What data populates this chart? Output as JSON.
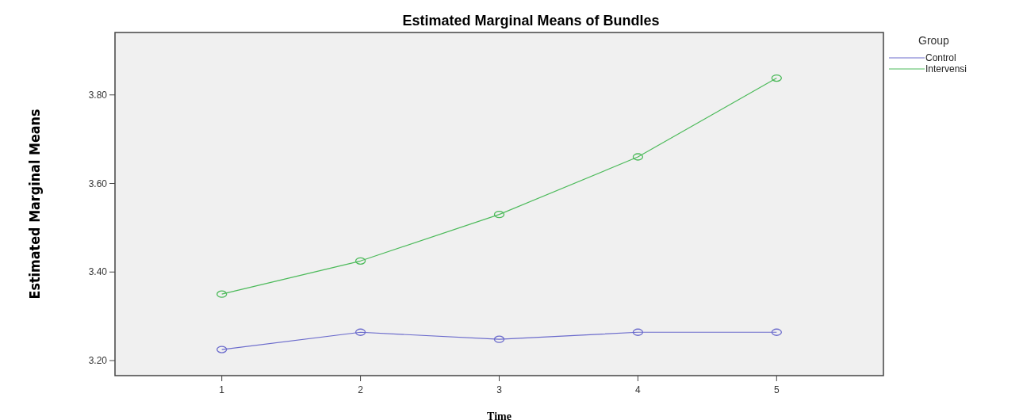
{
  "chart_data": {
    "type": "line",
    "title": "Estimated Marginal Means of Bundles",
    "xlabel": "Time",
    "ylabel": "Estimated Marginal Means",
    "legend_title": "Group",
    "categories": [
      "1",
      "2",
      "3",
      "4",
      "5"
    ],
    "series": [
      {
        "name": "Control",
        "color": "#6b6bcc",
        "values": [
          3.225,
          3.264,
          3.248,
          3.264,
          3.264
        ]
      },
      {
        "name": "Intervensi",
        "color": "#4cba5a",
        "values": [
          3.35,
          3.425,
          3.53,
          3.66,
          3.838
        ]
      }
    ],
    "ylim": [
      3.166,
      3.941
    ],
    "yticks": [
      {
        "value": 3.2,
        "label": "3.20"
      },
      {
        "value": 3.4,
        "label": "3.40"
      },
      {
        "value": 3.6,
        "label": "3.60"
      },
      {
        "value": 3.8,
        "label": "3.80"
      }
    ],
    "grid": false,
    "legend": "right",
    "marker": "circle",
    "line_style": "solid"
  }
}
